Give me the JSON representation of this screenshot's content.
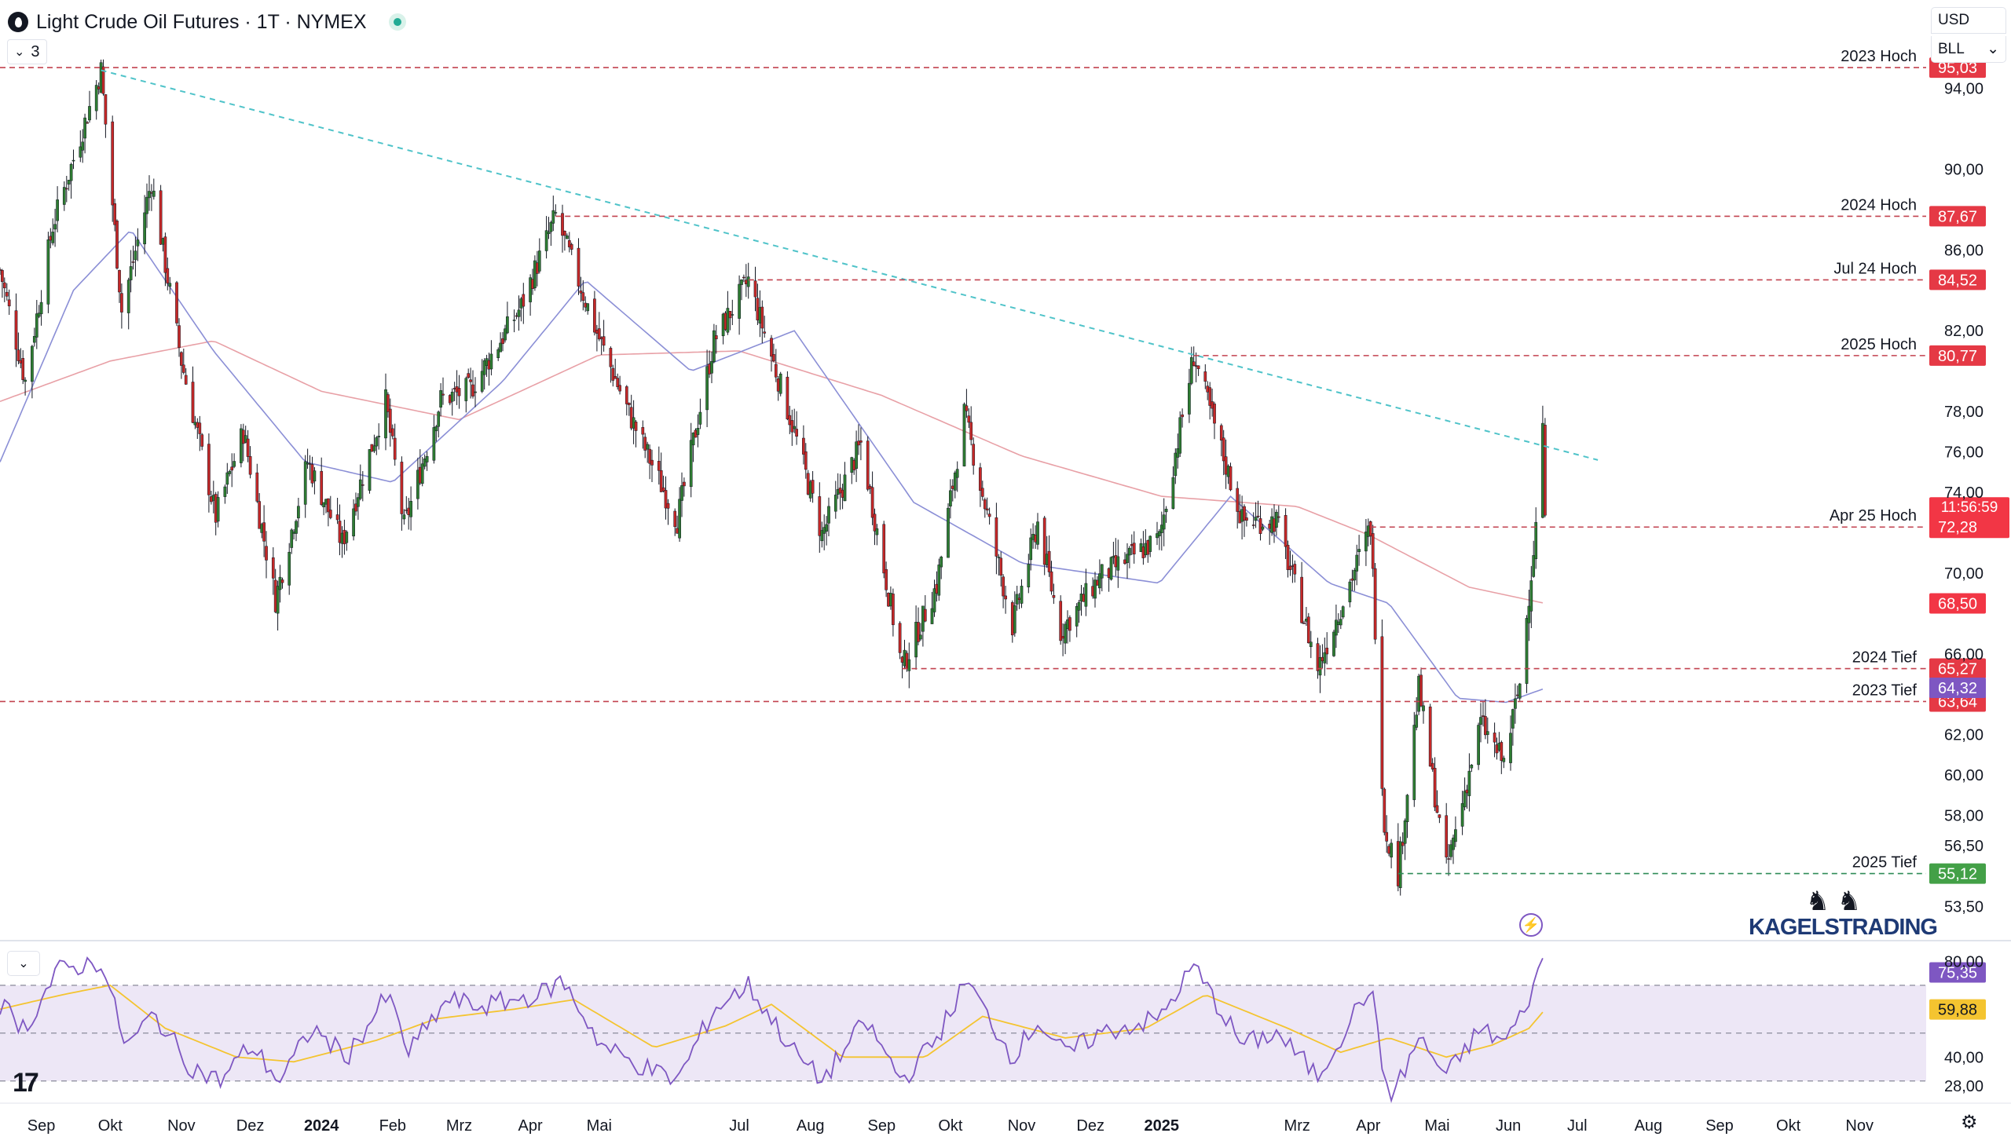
{
  "header": {
    "title": "Light Crude Oil Futures · 1T · NYMEX",
    "indicator_count": "3",
    "currency": "USD",
    "unit": "BLL"
  },
  "brand": {
    "name": "KAGELSTRADING"
  },
  "icons": {
    "symbol": "oil-drop-icon",
    "status": "market-open-dot-icon",
    "flash": "lightning-icon",
    "settings": "gear-icon",
    "logo": "tradingview-logo-icon"
  },
  "colors": {
    "up": "#22ab94",
    "down": "#f23645",
    "ma_fast": "#8b8fd6",
    "ma_slow": "#e8a0a6",
    "trendline": "#4fc3c9",
    "level_line": "#c2424f",
    "low_line": "#2e8b57",
    "rsi": "#7e57c2",
    "rsi_ma": "#f4c430",
    "rsi_band": "#ede7f6"
  },
  "chart_data": [
    {
      "type": "candlestick",
      "ylim": [
        52.5,
        96.2
      ],
      "y_ticks": [
        "94,00",
        "90,00",
        "86,00",
        "82,00",
        "78,00",
        "76,00",
        "74,00",
        "70,00",
        "66,00",
        "62,00",
        "60,00",
        "58,00",
        "56,50",
        "53,50"
      ],
      "y_tick_values": [
        94,
        90,
        86,
        82,
        78,
        76,
        74,
        70,
        66,
        62,
        60,
        58,
        56.5,
        53.5
      ],
      "x_labels": [
        "Sep",
        "Okt",
        "Nov",
        "Dez",
        "2024",
        "Feb",
        "Mrz",
        "Apr",
        "Mai",
        "Jul",
        "Aug",
        "Sep",
        "Okt",
        "Nov",
        "Dez",
        "2025",
        "Mrz",
        "Apr",
        "Mai",
        "Jun",
        "Jul",
        "Aug",
        "Sep",
        "Okt",
        "Nov"
      ],
      "x_label_bold": [
        "2024",
        "2025"
      ],
      "price_path": [
        [
          "2023-08-14",
          85.0
        ],
        [
          "2023-08-25",
          79.5
        ],
        [
          "2023-09-06",
          87.2
        ],
        [
          "2023-09-27",
          94.9
        ],
        [
          "2023-10-06",
          83.0
        ],
        [
          "2023-10-19",
          89.4
        ],
        [
          "2023-11-01",
          80.5
        ],
        [
          "2023-11-16",
          72.8
        ],
        [
          "2023-11-28",
          77.0
        ],
        [
          "2023-12-12",
          68.7
        ],
        [
          "2023-12-26",
          75.5
        ],
        [
          "2024-01-10",
          71.5
        ],
        [
          "2024-01-29",
          78.5
        ],
        [
          "2024-02-06",
          72.3
        ],
        [
          "2024-02-22",
          78.6
        ],
        [
          "2024-03-06",
          79.1
        ],
        [
          "2024-03-28",
          83.2
        ],
        [
          "2024-04-12",
          87.7
        ],
        [
          "2024-04-30",
          81.9
        ],
        [
          "2024-05-14",
          77.9
        ],
        [
          "2024-06-04",
          72.6
        ],
        [
          "2024-06-20",
          81.5
        ],
        [
          "2024-07-05",
          84.5
        ],
        [
          "2024-07-25",
          77.0
        ],
        [
          "2024-08-06",
          71.9
        ],
        [
          "2024-08-23",
          76.4
        ],
        [
          "2024-09-10",
          65.3
        ],
        [
          "2024-09-25",
          69.4
        ],
        [
          "2024-10-07",
          77.9
        ],
        [
          "2024-10-28",
          67.4
        ],
        [
          "2024-11-08",
          72.5
        ],
        [
          "2024-11-18",
          67.1
        ],
        [
          "2024-12-05",
          69.8
        ],
        [
          "2024-12-31",
          71.7
        ],
        [
          "2025-01-15",
          80.8
        ],
        [
          "2025-02-05",
          72.6
        ],
        [
          "2025-02-20",
          72.6
        ],
        [
          "2025-03-10",
          65.3
        ],
        [
          "2025-04-02",
          72.3
        ],
        [
          "2025-04-08",
          57.5
        ],
        [
          "2025-04-14",
          55.1
        ],
        [
          "2025-04-23",
          64.3
        ],
        [
          "2025-05-05",
          55.3
        ],
        [
          "2025-05-20",
          62.6
        ],
        [
          "2025-05-30",
          60.6
        ],
        [
          "2025-06-06",
          64.5
        ],
        [
          "2025-06-13",
          72.3
        ],
        [
          "2025-06-16",
          77.5
        ],
        [
          "2025-06-17",
          72.3
        ]
      ],
      "moving_averages": [
        {
          "name": "",
          "color_key": "ma_slow",
          "path": [
            [
              "2023-08-14",
              78.5
            ],
            [
              "2023-10-01",
              80.5
            ],
            [
              "2023-11-15",
              81.5
            ],
            [
              "2024-01-01",
              79.0
            ],
            [
              "2024-03-01",
              77.6
            ],
            [
              "2024-05-01",
              80.8
            ],
            [
              "2024-07-01",
              81.0
            ],
            [
              "2024-09-01",
              78.8
            ],
            [
              "2024-11-01",
              75.8
            ],
            [
              "2025-01-01",
              73.8
            ],
            [
              "2025-03-01",
              73.3
            ],
            [
              "2025-04-01",
              71.9
            ],
            [
              "2025-05-15",
              69.3
            ],
            [
              "2025-06-17",
              68.5
            ]
          ]
        },
        {
          "name": "",
          "color_key": "ma_fast",
          "path": [
            [
              "2023-08-14",
              75.5
            ],
            [
              "2023-09-15",
              84.0
            ],
            [
              "2023-10-10",
              87.0
            ],
            [
              "2023-11-15",
              81.0
            ],
            [
              "2023-12-25",
              75.5
            ],
            [
              "2024-02-01",
              74.5
            ],
            [
              "2024-03-20",
              79.5
            ],
            [
              "2024-04-25",
              84.5
            ],
            [
              "2024-06-10",
              80.0
            ],
            [
              "2024-07-25",
              82.0
            ],
            [
              "2024-09-15",
              73.5
            ],
            [
              "2024-11-01",
              70.5
            ],
            [
              "2024-12-31",
              69.5
            ],
            [
              "2025-01-31",
              73.8
            ],
            [
              "2025-03-15",
              69.5
            ],
            [
              "2025-04-10",
              68.5
            ],
            [
              "2025-05-10",
              63.8
            ],
            [
              "2025-05-31",
              63.6
            ],
            [
              "2025-06-17",
              64.3
            ]
          ]
        }
      ],
      "trendline": [
        [
          "2023-09-27",
          94.9
        ],
        [
          "2025-07-10",
          75.6
        ]
      ],
      "levels": [
        {
          "label": "2023 Hoch",
          "value": 95.03,
          "value_text": "95,03",
          "start": "2023-09-27",
          "full_width": true,
          "style": "level"
        },
        {
          "label": "2024 Hoch",
          "value": 87.67,
          "value_text": "87,67",
          "start": "2024-04-12",
          "full_width": false,
          "style": "level"
        },
        {
          "label": "Jul 24 Hoch",
          "value": 84.52,
          "value_text": "84,52",
          "start": "2024-07-05",
          "full_width": false,
          "style": "level"
        },
        {
          "label": "2025 Hoch",
          "value": 80.77,
          "value_text": "80,77",
          "start": "2025-01-15",
          "full_width": false,
          "style": "level"
        },
        {
          "label": "Apr 25 Hoch",
          "value": 72.28,
          "value_text": "72,28",
          "start": "2025-04-02",
          "full_width": false,
          "style": "level"
        },
        {
          "label": "2024 Tief",
          "value": 65.27,
          "value_text": "65,27",
          "start": "2024-09-10",
          "full_width": false,
          "style": "level"
        },
        {
          "label": "2023 Tief",
          "value": 63.64,
          "value_text": "63,64",
          "start": "2023-08-14",
          "full_width": true,
          "style": "level"
        },
        {
          "label": "2025 Tief",
          "value": 55.12,
          "value_text": "55,12",
          "start": "2025-04-14",
          "full_width": false,
          "style": "low"
        }
      ],
      "price_tags": [
        {
          "value": 72.28,
          "text": "72,28",
          "countdown": "11:56:59",
          "color_key": "down"
        },
        {
          "value": 68.5,
          "text": "68,50",
          "color_key": "down"
        },
        {
          "value": 64.32,
          "text": "64,32",
          "color_key": "rsi"
        }
      ]
    },
    {
      "type": "line",
      "ylim": [
        24.0,
        88.0
      ],
      "y_ticks": [
        "80,00",
        "40,00",
        "28,00"
      ],
      "y_tick_values": [
        80,
        40,
        28
      ],
      "band": [
        30,
        70
      ],
      "midline": 50,
      "rsi_path": [
        [
          "2023-08-14",
          62
        ],
        [
          "2023-08-25",
          52
        ],
        [
          "2023-09-08",
          76
        ],
        [
          "2023-09-27",
          80
        ],
        [
          "2023-10-08",
          44
        ],
        [
          "2023-10-20",
          58
        ],
        [
          "2023-11-05",
          36
        ],
        [
          "2023-11-18",
          30
        ],
        [
          "2023-12-01",
          45
        ],
        [
          "2023-12-14",
          30
        ],
        [
          "2023-12-28",
          52
        ],
        [
          "2024-01-12",
          40
        ],
        [
          "2024-01-30",
          66
        ],
        [
          "2024-02-08",
          42
        ],
        [
          "2024-02-25",
          64
        ],
        [
          "2024-03-10",
          61
        ],
        [
          "2024-04-05",
          66
        ],
        [
          "2024-04-15",
          72
        ],
        [
          "2024-05-02",
          45
        ],
        [
          "2024-05-15",
          38
        ],
        [
          "2024-06-04",
          30
        ],
        [
          "2024-06-20",
          60
        ],
        [
          "2024-07-05",
          70
        ],
        [
          "2024-07-25",
          42
        ],
        [
          "2024-08-06",
          30
        ],
        [
          "2024-08-25",
          55
        ],
        [
          "2024-09-10",
          30
        ],
        [
          "2024-09-25",
          48
        ],
        [
          "2024-10-08",
          72
        ],
        [
          "2024-10-28",
          40
        ],
        [
          "2024-11-08",
          55
        ],
        [
          "2024-11-20",
          41
        ],
        [
          "2024-12-05",
          50
        ],
        [
          "2024-12-31",
          56
        ],
        [
          "2025-01-15",
          78
        ],
        [
          "2025-02-05",
          45
        ],
        [
          "2025-02-20",
          50
        ],
        [
          "2025-03-10",
          32
        ],
        [
          "2025-04-02",
          70
        ],
        [
          "2025-04-08",
          30
        ],
        [
          "2025-04-12",
          24
        ],
        [
          "2025-04-23",
          48
        ],
        [
          "2025-05-05",
          32
        ],
        [
          "2025-05-20",
          52
        ],
        [
          "2025-05-30",
          46
        ],
        [
          "2025-06-06",
          56
        ],
        [
          "2025-06-13",
          72
        ],
        [
          "2025-06-16",
          80
        ],
        [
          "2025-06-17",
          75.35
        ]
      ],
      "rsi_ma_path": [
        [
          "2023-08-14",
          60
        ],
        [
          "2023-09-10",
          66
        ],
        [
          "2023-10-01",
          70
        ],
        [
          "2023-10-25",
          52
        ],
        [
          "2023-11-25",
          40
        ],
        [
          "2023-12-20",
          38
        ],
        [
          "2024-01-25",
          47
        ],
        [
          "2024-02-20",
          56
        ],
        [
          "2024-03-25",
          60
        ],
        [
          "2024-04-20",
          64
        ],
        [
          "2024-05-25",
          44
        ],
        [
          "2024-06-25",
          53
        ],
        [
          "2024-07-15",
          62
        ],
        [
          "2024-08-15",
          40
        ],
        [
          "2024-09-20",
          40
        ],
        [
          "2024-10-15",
          57
        ],
        [
          "2024-11-20",
          48
        ],
        [
          "2024-12-25",
          52
        ],
        [
          "2025-01-20",
          66
        ],
        [
          "2025-02-25",
          52
        ],
        [
          "2025-03-20",
          42
        ],
        [
          "2025-04-10",
          48
        ],
        [
          "2025-05-05",
          40
        ],
        [
          "2025-05-25",
          45
        ],
        [
          "2025-06-10",
          52
        ],
        [
          "2025-06-17",
          59.88
        ]
      ],
      "value_tags": [
        {
          "value": 75.35,
          "text": "75,35",
          "color_key": "rsi"
        },
        {
          "value": 59.88,
          "text": "59,88",
          "color_key": "rsi_ma"
        }
      ]
    }
  ]
}
